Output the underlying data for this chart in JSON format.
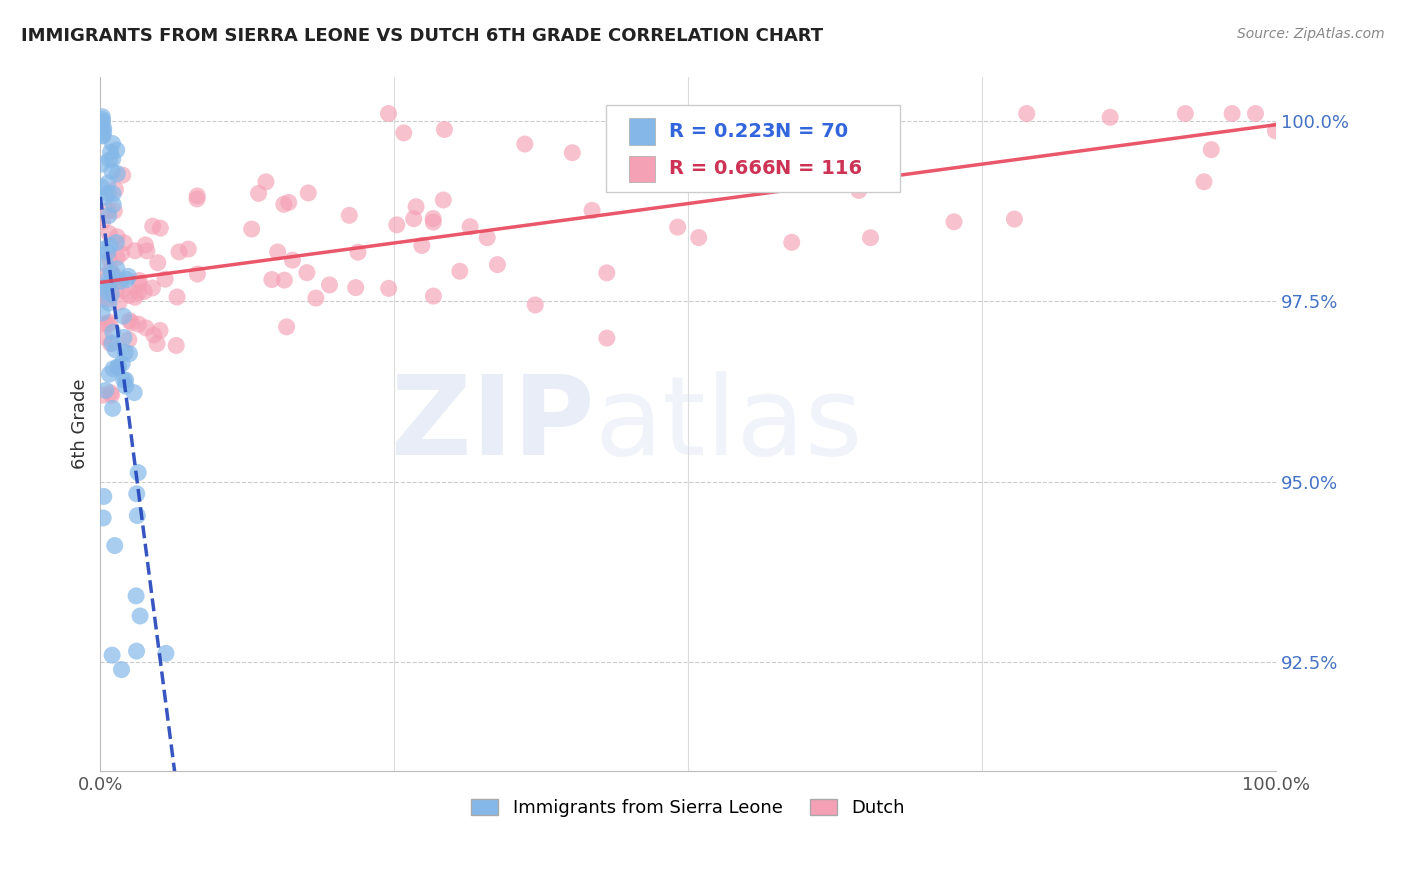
{
  "title": "IMMIGRANTS FROM SIERRA LEONE VS DUTCH 6TH GRADE CORRELATION CHART",
  "source": "Source: ZipAtlas.com",
  "ylabel": "6th Grade",
  "ytick_labels": [
    "92.5%",
    "95.0%",
    "97.5%",
    "100.0%"
  ],
  "ytick_values": [
    0.925,
    0.95,
    0.975,
    1.0
  ],
  "xlim": [
    0.0,
    1.0
  ],
  "ylim": [
    0.91,
    1.006
  ],
  "label_blue": "Immigrants from Sierra Leone",
  "label_pink": "Dutch",
  "blue_color": "#85b8e8",
  "pink_color": "#f4a0b5",
  "trendline_blue_color": "#2244bb",
  "trendline_pink_color": "#e8455a",
  "legend_R_blue": "R = 0.223",
  "legend_N_blue": "N = 70",
  "legend_R_pink": "R = 0.666",
  "legend_N_pink": "N = 116",
  "legend_text_blue_color": "#3366dd",
  "legend_text_pink_color": "#cc3355"
}
